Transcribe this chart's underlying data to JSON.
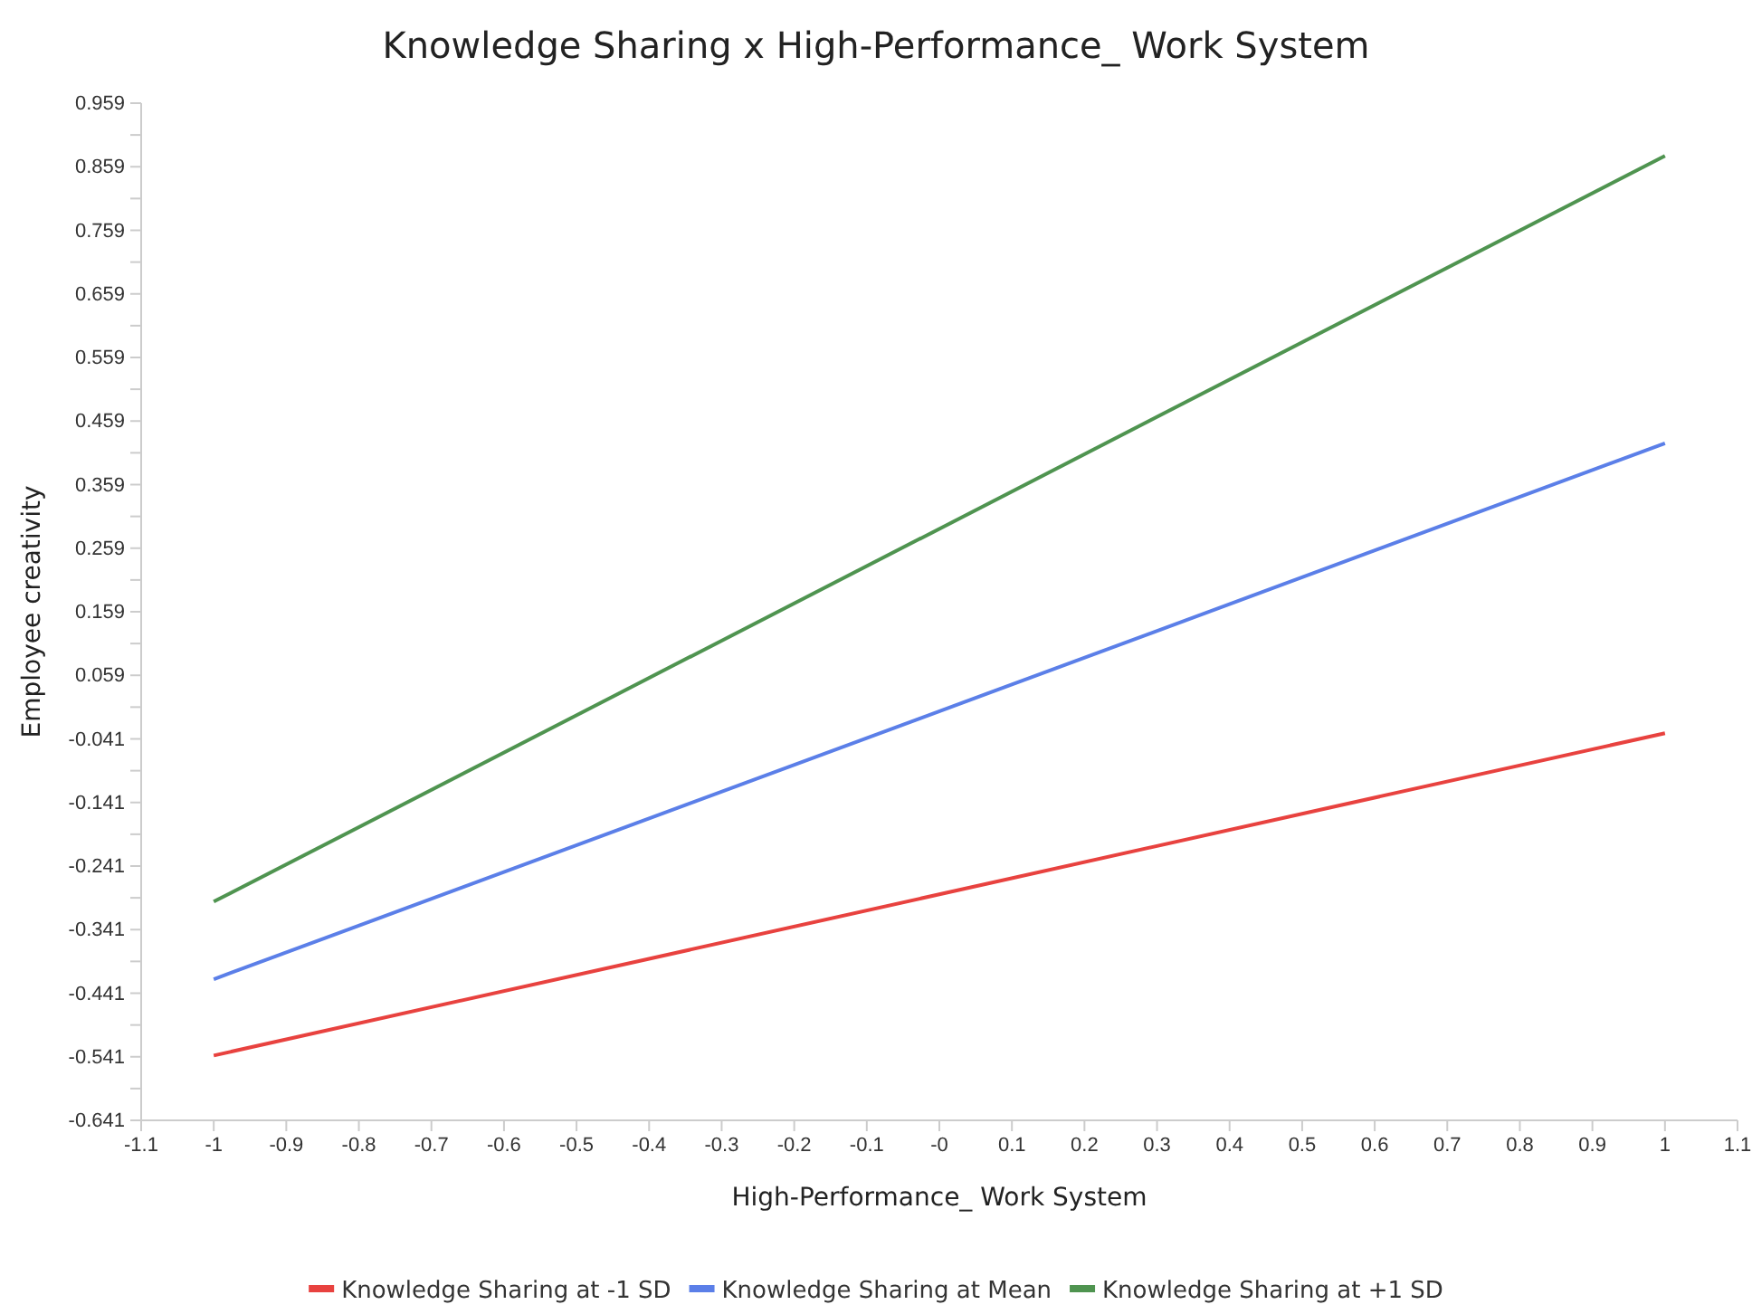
{
  "chart_data": {
    "type": "line",
    "title": "Knowledge Sharing x High-Performance_ Work System",
    "xlabel": "High-Performance_ Work System",
    "ylabel": "Employee creativity",
    "x": [
      -1,
      1
    ],
    "series": [
      {
        "name": "Knowledge Sharing at -1 SD",
        "color": "#e8423f",
        "values": [
          -0.539,
          -0.032
        ]
      },
      {
        "name": "Knowledge Sharing at Mean",
        "color": "#5b7fe8",
        "values": [
          -0.419,
          0.424
        ]
      },
      {
        "name": "Knowledge Sharing at +1 SD",
        "color": "#4f9450",
        "values": [
          -0.297,
          0.876
        ]
      }
    ],
    "xlim": [
      -1.1,
      1.1
    ],
    "xticks": [
      -1.1,
      -1,
      -0.9,
      -0.8,
      -0.7,
      -0.6,
      -0.5,
      -0.4,
      -0.3,
      -0.2,
      -0.1,
      {
        "value": 0,
        "label": "-0"
      },
      0.1,
      0.2,
      0.3,
      0.4,
      0.5,
      0.6,
      0.7,
      0.8,
      0.9,
      1,
      1.1
    ],
    "ylim": [
      -0.641,
      0.959
    ],
    "yticks": [
      -0.641,
      {
        "value": -0.591,
        "label": null
      },
      -0.541,
      {
        "value": -0.491,
        "label": null
      },
      -0.441,
      {
        "value": -0.391,
        "label": null
      },
      -0.341,
      {
        "value": -0.291,
        "label": null
      },
      -0.241,
      {
        "value": -0.191,
        "label": null
      },
      -0.141,
      {
        "value": -0.091,
        "label": null
      },
      -0.041,
      {
        "value": 0.009,
        "label": null
      },
      0.059,
      {
        "value": 0.109,
        "label": null
      },
      0.159,
      {
        "value": 0.209,
        "label": null
      },
      0.259,
      {
        "value": 0.309,
        "label": null
      },
      0.359,
      {
        "value": 0.409,
        "label": null
      },
      0.459,
      {
        "value": 0.509,
        "label": null
      },
      0.559,
      {
        "value": 0.609,
        "label": null
      },
      0.659,
      {
        "value": 0.709,
        "label": null
      },
      0.759,
      {
        "value": 0.809,
        "label": null
      },
      0.859,
      {
        "value": 0.909,
        "label": null
      },
      0.959
    ],
    "grid": false,
    "legend": "bottom",
    "marker": "none",
    "line_style": "solid"
  }
}
